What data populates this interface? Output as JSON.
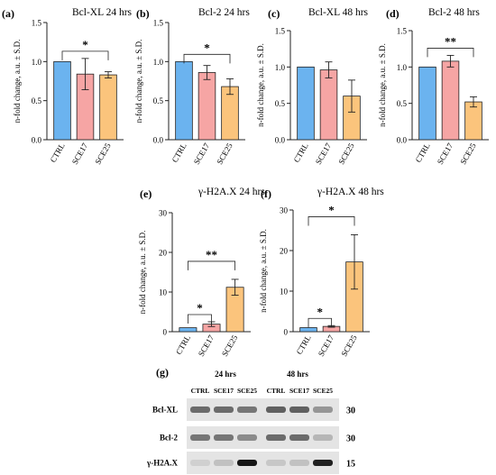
{
  "figure": {
    "blot_panel_letter": "(g)",
    "group_labels": [
      "24 hrs",
      "48 hrs"
    ],
    "lane_labels": [
      "CTRL",
      "SCE17",
      "SCE25",
      "CTRL",
      "SCE17",
      "SCE25"
    ],
    "rows": [
      {
        "label": "Bcl-XL",
        "kda": "30",
        "intensities": [
          0.55,
          0.55,
          0.5,
          0.6,
          0.6,
          0.35
        ]
      },
      {
        "label": "Bcl-2",
        "kda": "30",
        "intensities": [
          0.5,
          0.5,
          0.4,
          0.55,
          0.55,
          0.2
        ]
      },
      {
        "label": "γ-H2A.X",
        "kda": "15",
        "intensities": [
          0.08,
          0.15,
          0.95,
          0.12,
          0.15,
          0.9
        ]
      }
    ]
  },
  "colors": {
    "CTRL": "#6bb3ef",
    "SCE17": "#f6a5a4",
    "SCE25": "#fbc47c",
    "axis": "#222222"
  },
  "chart_data": [
    {
      "type": "bar",
      "panel": "(a)",
      "title": "Bcl-XL 24 hrs",
      "categories": [
        "CTRL",
        "SCE17",
        "SCE25"
      ],
      "values": [
        1.0,
        0.84,
        0.83
      ],
      "errors": [
        0.0,
        0.2,
        0.04
      ],
      "ylabel": "n-fold change, a.u. ± S.D.",
      "ylim": [
        0,
        1.5
      ],
      "yticks": [
        "0.0",
        "0.5",
        "1.0",
        "1.5"
      ],
      "significance": [
        {
          "from": "CTRL",
          "to": "SCE25",
          "label": "*"
        }
      ]
    },
    {
      "type": "bar",
      "panel": "(b)",
      "title": "Bcl-2 24 hrs",
      "categories": [
        "CTRL",
        "SCE17",
        "SCE25"
      ],
      "values": [
        1.0,
        0.86,
        0.68
      ],
      "errors": [
        0.0,
        0.09,
        0.1
      ],
      "ylabel": "n-fold change, a.u. ± S.D.",
      "ylim": [
        0,
        1.5
      ],
      "yticks": [
        "0.0",
        "0.5",
        "1.0",
        "1.5"
      ],
      "significance": [
        {
          "from": "CTRL",
          "to": "SCE25",
          "label": "*"
        }
      ]
    },
    {
      "type": "bar",
      "panel": "(c)",
      "title": "Bcl-XL 48 hrs",
      "categories": [
        "CTRL",
        "SCE17",
        "SCE25"
      ],
      "values": [
        1.0,
        0.96,
        0.6
      ],
      "errors": [
        0.0,
        0.11,
        0.22
      ],
      "ylabel": "n-fold change, a.u. ± S.D.",
      "ylim": [
        0,
        1.5
      ],
      "yticks": [
        "0.0",
        "0.5",
        "1.0",
        "1.5"
      ],
      "significance": []
    },
    {
      "type": "bar",
      "panel": "(d)",
      "title": "Bcl-2 48 hrs",
      "categories": [
        "CTRL",
        "SCE17",
        "SCE25"
      ],
      "values": [
        1.0,
        1.08,
        0.52
      ],
      "errors": [
        0.0,
        0.08,
        0.07
      ],
      "ylabel": "n-fold change, a.u. ± S.D.",
      "ylim": [
        0,
        1.5
      ],
      "yticks": [
        "0.0",
        "0.5",
        "1.0",
        "1.5"
      ],
      "significance": [
        {
          "from": "CTRL",
          "to": "SCE25",
          "label": "**"
        }
      ]
    },
    {
      "type": "bar",
      "panel": "(e)",
      "title": "γ-H2A.X 24 hrs",
      "categories": [
        "CTRL",
        "SCE17",
        "SCE25"
      ],
      "values": [
        1.0,
        1.9,
        11.2
      ],
      "errors": [
        0.0,
        0.6,
        2.0
      ],
      "ylabel": "n-fold change, a.u. ± S.D.",
      "ylim": [
        0,
        30
      ],
      "yticks": [
        "0",
        "10",
        "20",
        "30"
      ],
      "significance": [
        {
          "from": "CTRL",
          "to": "SCE17",
          "label": "*"
        },
        {
          "from": "CTRL",
          "to": "SCE25",
          "label": "**"
        }
      ]
    },
    {
      "type": "bar",
      "panel": "(f)",
      "title": "γ-H2A.X 48 hrs",
      "categories": [
        "CTRL",
        "SCE17",
        "SCE25"
      ],
      "values": [
        1.0,
        1.3,
        17.2
      ],
      "errors": [
        0.0,
        0.2,
        6.7
      ],
      "ylabel": "n-fold change, a.u. ± S.D.",
      "ylim": [
        0,
        30
      ],
      "yticks": [
        "0",
        "10",
        "20",
        "30"
      ],
      "significance": [
        {
          "from": "CTRL",
          "to": "SCE17",
          "label": "*"
        },
        {
          "from": "CTRL",
          "to": "SCE25",
          "label": "*"
        }
      ]
    }
  ]
}
